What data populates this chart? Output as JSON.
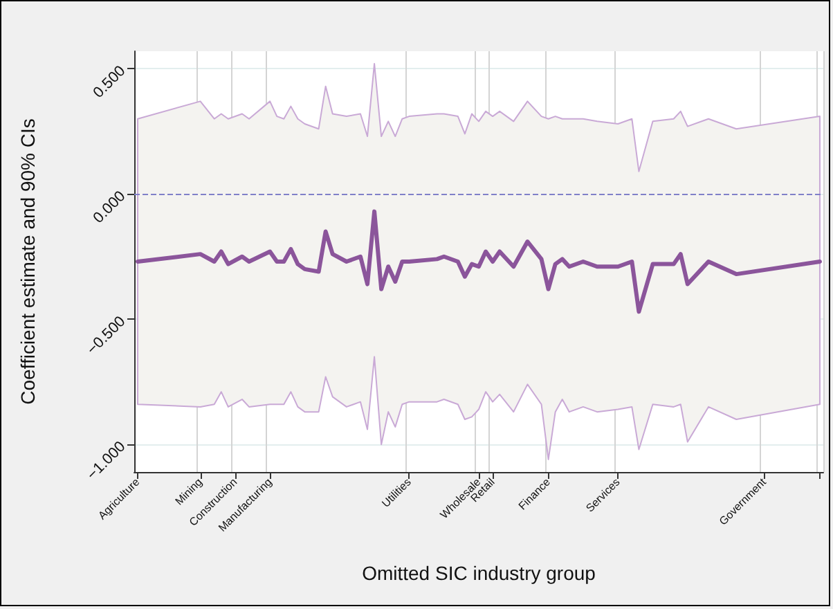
{
  "chart_data": {
    "type": "line",
    "xlabel": "Omitted SIC industry group",
    "ylabel": "Coefficient estimate and 90% CIs",
    "categories": [
      "Agriculture",
      null,
      null,
      null,
      null,
      null,
      null,
      null,
      null,
      "Mining",
      null,
      null,
      null,
      null,
      "Construction",
      null,
      null,
      null,
      null,
      "Manufacturing",
      null,
      null,
      null,
      null,
      null,
      null,
      null,
      null,
      null,
      null,
      null,
      null,
      null,
      null,
      null,
      null,
      null,
      null,
      null,
      "Utilities",
      null,
      null,
      null,
      null,
      null,
      null,
      null,
      null,
      null,
      "Wholesale",
      null,
      "Retail",
      null,
      null,
      null,
      null,
      null,
      null,
      null,
      "Finance",
      null,
      null,
      null,
      null,
      null,
      null,
      null,
      null,
      null,
      "Services",
      null,
      null,
      null,
      null,
      null,
      null,
      null,
      null,
      null,
      null,
      null,
      null,
      null,
      null,
      null,
      null,
      null,
      null,
      null,
      null,
      "Government",
      null,
      null,
      null,
      null,
      null,
      null,
      null,
      null
    ],
    "series": [
      {
        "color": "#8b559b",
        "values": [
          -0.27,
          null,
          null,
          null,
          null,
          null,
          null,
          null,
          null,
          -0.24,
          null,
          -0.27,
          -0.23,
          -0.28,
          null,
          -0.25,
          -0.27,
          null,
          null,
          -0.23,
          -0.27,
          -0.27,
          -0.22,
          -0.28,
          -0.3,
          null,
          -0.31,
          -0.15,
          -0.24,
          null,
          -0.27,
          null,
          -0.25,
          -0.36,
          -0.07,
          -0.38,
          -0.29,
          -0.35,
          -0.27,
          -0.27,
          null,
          null,
          null,
          -0.26,
          -0.25,
          null,
          -0.27,
          -0.33,
          -0.28,
          -0.29,
          -0.23,
          -0.27,
          -0.23,
          null,
          -0.29,
          null,
          -0.19,
          null,
          -0.26,
          -0.38,
          -0.28,
          -0.26,
          -0.29,
          null,
          -0.27,
          null,
          -0.29,
          null,
          null,
          -0.29,
          null,
          -0.27,
          -0.47,
          null,
          -0.28,
          null,
          null,
          -0.28,
          -0.24,
          -0.36,
          null,
          null,
          -0.27,
          null,
          null,
          null,
          -0.32,
          null,
          null,
          null,
          null,
          null,
          null,
          null,
          null,
          null,
          null,
          null,
          -0.27
        ],
        "upper": [
          0.3,
          null,
          null,
          null,
          null,
          null,
          null,
          null,
          null,
          0.37,
          null,
          0.3,
          0.32,
          0.3,
          null,
          0.32,
          0.3,
          null,
          null,
          0.37,
          0.31,
          0.3,
          0.35,
          0.3,
          0.28,
          null,
          0.26,
          0.43,
          0.32,
          null,
          0.31,
          null,
          0.32,
          0.23,
          0.52,
          0.23,
          0.29,
          0.23,
          0.3,
          0.31,
          null,
          null,
          null,
          0.32,
          0.32,
          null,
          0.31,
          0.24,
          0.32,
          0.29,
          0.33,
          0.31,
          0.33,
          null,
          0.29,
          null,
          0.37,
          null,
          0.31,
          0.3,
          0.31,
          0.3,
          0.3,
          null,
          0.3,
          null,
          0.29,
          null,
          null,
          0.28,
          null,
          0.3,
          0.09,
          null,
          0.29,
          null,
          null,
          0.3,
          0.33,
          0.27,
          null,
          null,
          0.3,
          null,
          null,
          null,
          0.26,
          null,
          null,
          null,
          null,
          null,
          null,
          null,
          null,
          null,
          null,
          null,
          0.31
        ],
        "lower": [
          -0.84,
          null,
          null,
          null,
          null,
          null,
          null,
          null,
          null,
          -0.85,
          null,
          -0.84,
          -0.79,
          -0.85,
          null,
          -0.82,
          -0.85,
          null,
          null,
          -0.84,
          -0.84,
          -0.84,
          -0.79,
          -0.85,
          -0.87,
          null,
          -0.87,
          -0.73,
          -0.81,
          null,
          -0.85,
          null,
          -0.83,
          -0.94,
          -0.65,
          -1.0,
          -0.87,
          -0.93,
          -0.84,
          -0.83,
          null,
          null,
          null,
          -0.83,
          -0.82,
          null,
          -0.84,
          -0.9,
          -0.89,
          -0.86,
          -0.79,
          -0.83,
          -0.8,
          null,
          -0.87,
          null,
          -0.76,
          null,
          -0.84,
          -1.06,
          -0.87,
          -0.82,
          -0.87,
          null,
          -0.85,
          null,
          -0.87,
          null,
          null,
          -0.86,
          null,
          -0.85,
          -1.02,
          null,
          -0.84,
          null,
          null,
          -0.85,
          -0.84,
          -0.99,
          null,
          null,
          -0.85,
          null,
          null,
          null,
          -0.9,
          null,
          null,
          null,
          null,
          null,
          null,
          null,
          null,
          null,
          null,
          null,
          -0.84
        ]
      }
    ],
    "ylim": [
      -1.11,
      0.57
    ],
    "yticks": [
      {
        "value": -1,
        "label": "−1.000"
      },
      {
        "value": -0.5,
        "label": "−0.500"
      },
      {
        "value": 0,
        "label": "0.000"
      },
      {
        "value": 0.5,
        "label": "0.500"
      }
    ],
    "ref_lines": [
      {
        "axis": "y",
        "value": 0,
        "color": "#8080c8",
        "line_style": "dashed"
      }
    ],
    "grid": true,
    "marker": "none",
    "line_style": "solid"
  }
}
